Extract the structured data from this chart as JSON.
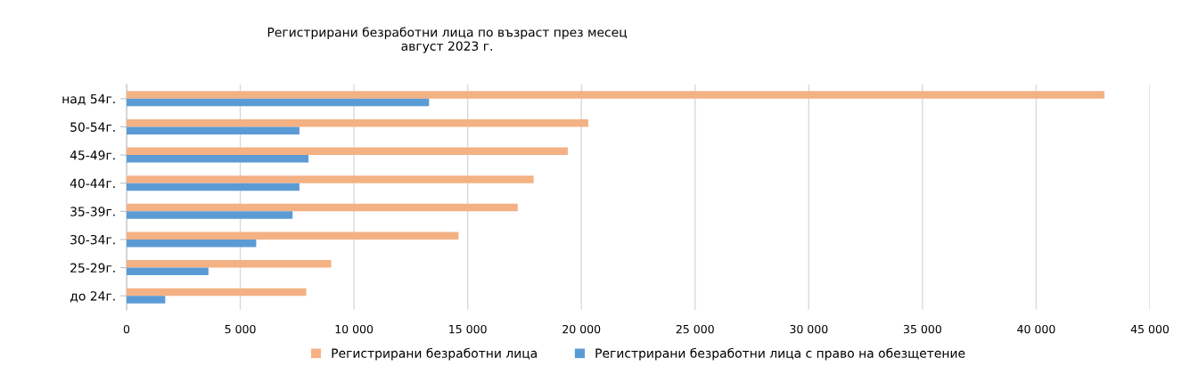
{
  "chart_data": {
    "type": "bar",
    "orientation": "horizontal",
    "title": "Регистрирани безработни лица по възраст през месец\nавгуст 2023 г.",
    "categories": [
      "над 54г.",
      "50-54г.",
      "45-49г.",
      "40-44г.",
      "35-39г.",
      "30-34г.",
      "25-29г.",
      "до 24г."
    ],
    "series": [
      {
        "name": "Регистрирани безработни лица",
        "color": "#f4b183",
        "values": [
          43000,
          20300,
          19400,
          17900,
          17200,
          14600,
          9000,
          7900
        ]
      },
      {
        "name": "Регистрирани безработни лица с право на обезщетение",
        "color": "#5b9bd5",
        "values": [
          13300,
          7600,
          8000,
          7600,
          7300,
          5700,
          3600,
          1700
        ]
      }
    ],
    "xlim": [
      0,
      45000
    ],
    "xticks": [
      {
        "value": 0,
        "label": "0"
      },
      {
        "value": 5000,
        "label": "5 000"
      },
      {
        "value": 10000,
        "label": "10 000"
      },
      {
        "value": 15000,
        "label": "15 000"
      },
      {
        "value": 20000,
        "label": "20 000"
      },
      {
        "value": 25000,
        "label": "25 000"
      },
      {
        "value": 30000,
        "label": "30 000"
      },
      {
        "value": 35000,
        "label": "35 000"
      },
      {
        "value": 40000,
        "label": "40 000"
      },
      {
        "value": 45000,
        "label": "45 000"
      }
    ],
    "grid": "x",
    "legend": "bottom"
  }
}
